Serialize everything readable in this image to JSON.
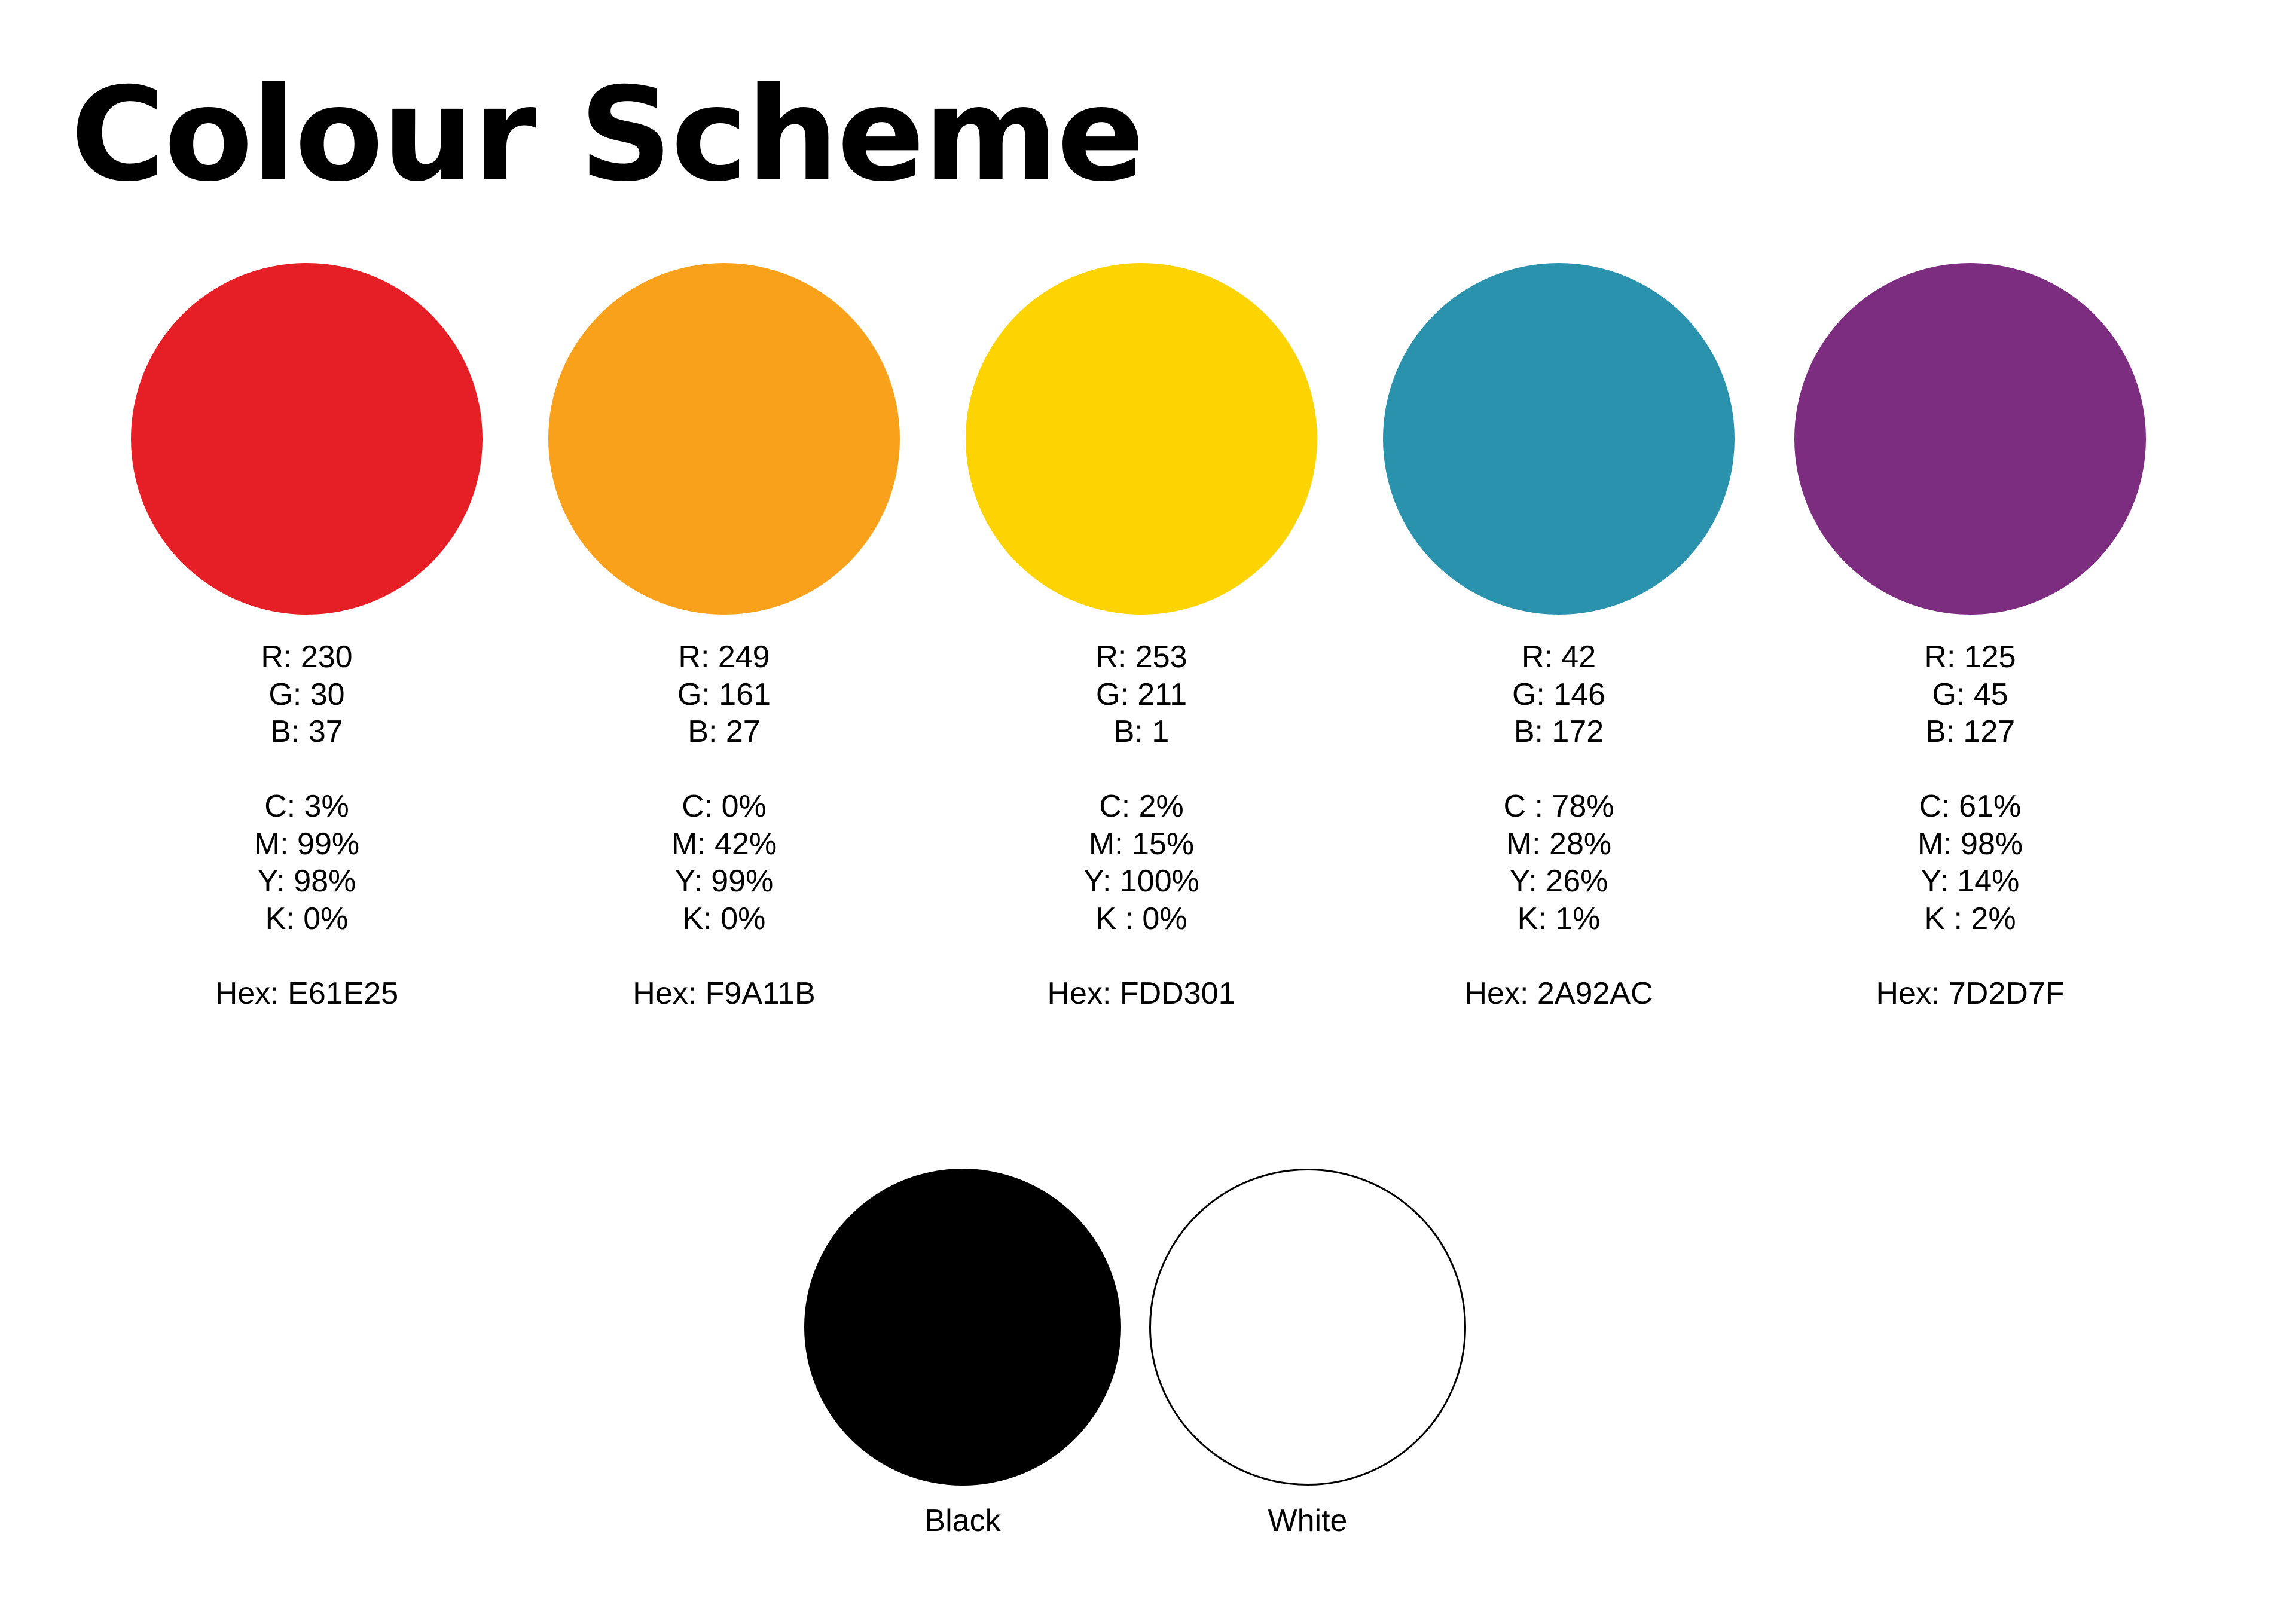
{
  "title": "Colour Scheme",
  "swatches": [
    {
      "color": "#E61E25",
      "rgb": [
        "R: 230",
        "G: 30",
        "B: 37"
      ],
      "cmyk": [
        "C: 3%",
        "M: 99%",
        "Y: 98%",
        "K: 0%"
      ],
      "hex": "Hex: E61E25"
    },
    {
      "color": "#F9A11B",
      "rgb": [
        "R: 249",
        "G: 161",
        "B: 27"
      ],
      "cmyk": [
        "C: 0%",
        "M: 42%",
        "Y: 99%",
        "K: 0%"
      ],
      "hex": "Hex: F9A11B"
    },
    {
      "color": "#FDD301",
      "rgb": [
        "R: 253",
        "G: 211",
        "B: 1"
      ],
      "cmyk": [
        "C: 2%",
        "M: 15%",
        "Y: 100%",
        "K : 0%"
      ],
      "hex": "Hex: FDD301"
    },
    {
      "color": "#2A92AC",
      "rgb": [
        "R: 42",
        "G: 146",
        "B: 172"
      ],
      "cmyk": [
        "C : 78%",
        "M: 28%",
        "Y: 26%",
        "K: 1%"
      ],
      "hex": "Hex: 2A92AC"
    },
    {
      "color": "#7D2D7F",
      "rgb": [
        "R: 125",
        "G: 45",
        "B: 127"
      ],
      "cmyk": [
        "C: 61%",
        "M: 98%",
        "Y: 14%",
        "K : 2%"
      ],
      "hex": "Hex: 7D2D7F"
    }
  ],
  "neutrals": [
    {
      "label": "Black",
      "color": "#000000"
    },
    {
      "label": "White",
      "color": "#FFFFFF"
    }
  ]
}
